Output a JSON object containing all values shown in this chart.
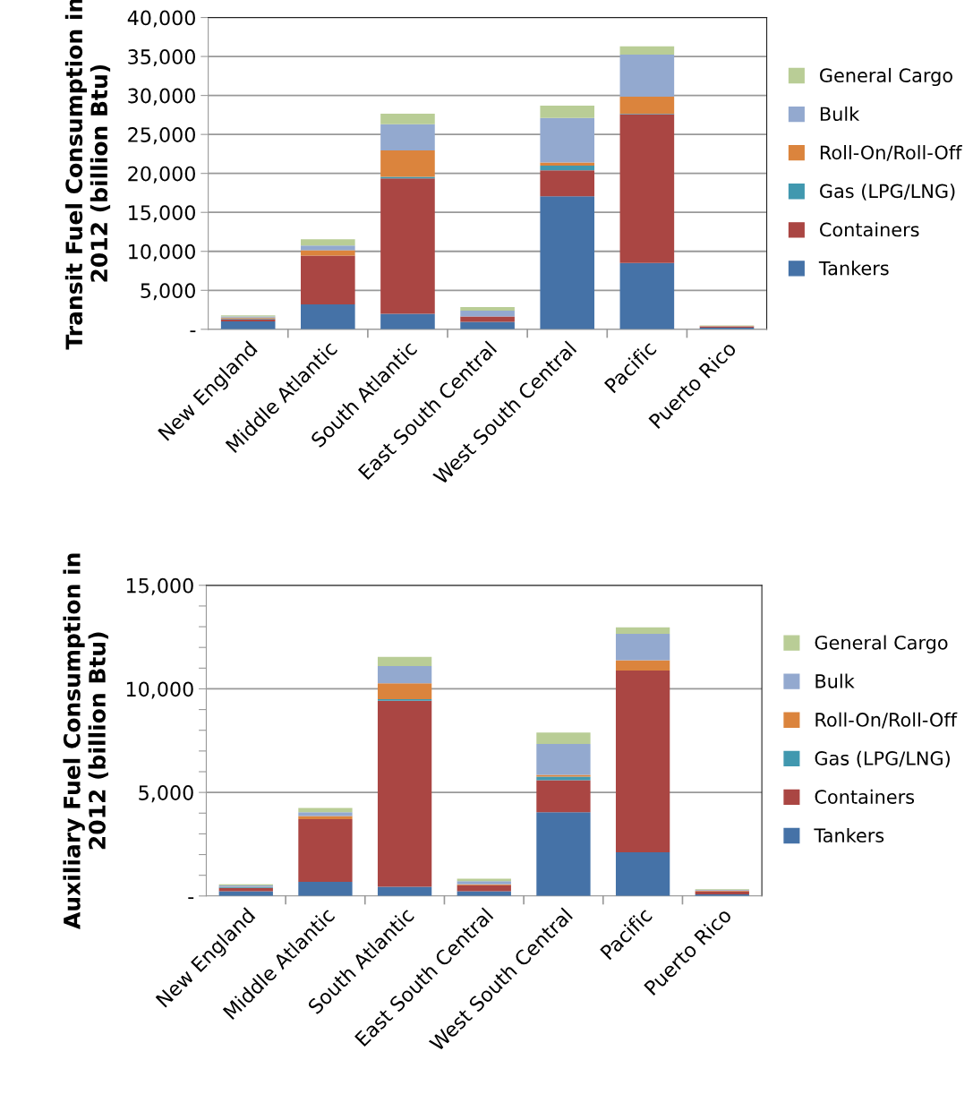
{
  "chart_data": [
    {
      "type": "bar",
      "stacked": true,
      "ylabel": "Transit Fuel Consumption in\n2012 (billion Btu)",
      "categories": [
        "New England",
        "Middle Atlantic",
        "South Atlantic",
        "East South Central",
        "West South Central",
        "Pacific",
        "Puerto Rico"
      ],
      "series": [
        {
          "name": "Tankers",
          "color": "#4572a7",
          "values": [
            1000,
            3200,
            2000,
            950,
            17050,
            8500,
            200
          ]
        },
        {
          "name": "Containers",
          "color": "#aa4643",
          "values": [
            300,
            6250,
            17350,
            700,
            3350,
            19100,
            150
          ]
        },
        {
          "name": "Gas (LPG/LNG)",
          "color": "#4198af",
          "values": [
            100,
            0,
            200,
            0,
            600,
            50,
            0
          ]
        },
        {
          "name": "Roll-On/Roll-Off",
          "color": "#db843d",
          "values": [
            100,
            700,
            3400,
            0,
            400,
            2200,
            50
          ]
        },
        {
          "name": "Bulk",
          "color": "#93a9cf",
          "values": [
            150,
            600,
            3350,
            750,
            5700,
            5400,
            50
          ]
        },
        {
          "name": "General Cargo",
          "color": "#b9cd96",
          "values": [
            150,
            800,
            1350,
            450,
            1600,
            1050,
            50
          ]
        }
      ],
      "ylim": [
        0,
        40000
      ],
      "yticks": [
        {
          "value": 0,
          "label": "-"
        },
        {
          "value": 5000,
          "label": "5,000"
        },
        {
          "value": 10000,
          "label": "10,000"
        },
        {
          "value": 15000,
          "label": "15,000"
        },
        {
          "value": 20000,
          "label": "20,000"
        },
        {
          "value": 25000,
          "label": "25,000"
        },
        {
          "value": 30000,
          "label": "30,000"
        },
        {
          "value": 35000,
          "label": "35,000"
        },
        {
          "value": 40000,
          "label": "40,000"
        }
      ],
      "grid": "y",
      "legend": "right"
    },
    {
      "type": "bar",
      "stacked": true,
      "ylabel": "Auxiliary Fuel Consumption in\n2012 (billion Btu)",
      "categories": [
        "New England",
        "Middle Atlantic",
        "South Atlantic",
        "East South Central",
        "West South Central",
        "Pacific",
        "Puerto Rico"
      ],
      "series": [
        {
          "name": "Tankers",
          "color": "#4572a7",
          "values": [
            230,
            680,
            450,
            230,
            4040,
            2110,
            80
          ]
        },
        {
          "name": "Containers",
          "color": "#aa4643",
          "values": [
            160,
            3030,
            8980,
            290,
            1550,
            8770,
            150
          ]
        },
        {
          "name": "Gas (LPG/LNG)",
          "color": "#4198af",
          "values": [
            40,
            0,
            70,
            0,
            170,
            0,
            0
          ]
        },
        {
          "name": "Roll-On/Roll-Off",
          "color": "#db843d",
          "values": [
            20,
            150,
            770,
            40,
            90,
            500,
            30
          ]
        },
        {
          "name": "Bulk",
          "color": "#93a9cf",
          "values": [
            60,
            180,
            830,
            160,
            1490,
            1280,
            40
          ]
        },
        {
          "name": "General Cargo",
          "color": "#b9cd96",
          "values": [
            60,
            210,
            440,
            110,
            550,
            310,
            30
          ]
        }
      ],
      "ylim": [
        0,
        15000
      ],
      "yticks": [
        {
          "value": 0,
          "label": "-"
        },
        {
          "value": 1000,
          "label": null
        },
        {
          "value": 2000,
          "label": null
        },
        {
          "value": 3000,
          "label": null
        },
        {
          "value": 4000,
          "label": null
        },
        {
          "value": 5000,
          "label": "5,000"
        },
        {
          "value": 6000,
          "label": null
        },
        {
          "value": 7000,
          "label": null
        },
        {
          "value": 8000,
          "label": null
        },
        {
          "value": 9000,
          "label": null
        },
        {
          "value": 10000,
          "label": "10,000"
        },
        {
          "value": 11000,
          "label": null
        },
        {
          "value": 12000,
          "label": null
        },
        {
          "value": 13000,
          "label": null
        },
        {
          "value": 14000,
          "label": null
        },
        {
          "value": 15000,
          "label": "15,000"
        }
      ],
      "grid": "y",
      "legend": "right"
    }
  ]
}
